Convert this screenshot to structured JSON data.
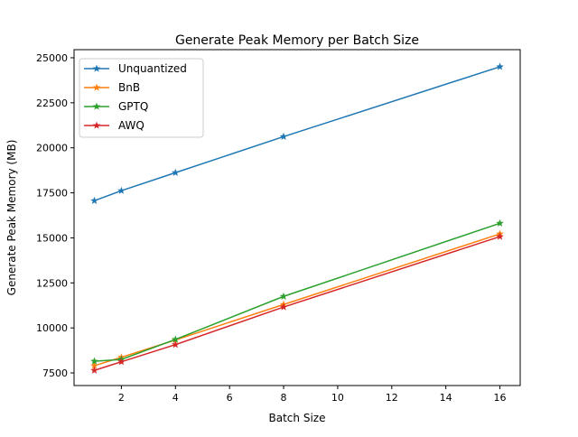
{
  "chart_data": {
    "type": "line",
    "title": "Generate Peak Memory per Batch Size",
    "xlabel": "Batch Size",
    "ylabel": "Generate Peak Memory (MB)",
    "x": [
      1,
      2,
      4,
      8,
      16
    ],
    "xlim": [
      0.25,
      16.75
    ],
    "ylim": [
      6800,
      25450
    ],
    "xticks": [
      2,
      4,
      6,
      8,
      10,
      12,
      14,
      16
    ],
    "yticks": [
      7500,
      10000,
      12500,
      15000,
      17500,
      20000,
      22500,
      25000
    ],
    "grid": false,
    "legend": "top-left",
    "marker": "star",
    "series": [
      {
        "name": "Unquantized",
        "color": "#1f77b4",
        "values": [
          17060,
          17620,
          18620,
          20620,
          24500
        ]
      },
      {
        "name": "BnB",
        "color": "#ff7f0e",
        "values": [
          7900,
          8370,
          9330,
          11300,
          15220
        ]
      },
      {
        "name": "GPTQ",
        "color": "#2ca02c",
        "values": [
          8150,
          8250,
          9360,
          11750,
          15810
        ]
      },
      {
        "name": "AWQ",
        "color": "#d62728",
        "values": [
          7640,
          8120,
          9070,
          11160,
          15070
        ]
      }
    ]
  }
}
